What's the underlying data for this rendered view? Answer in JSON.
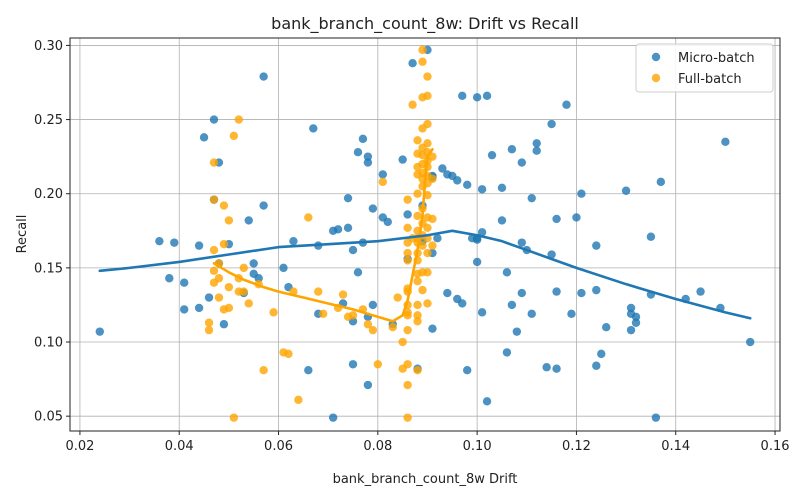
{
  "chart_data": {
    "type": "scatter",
    "title": "bank_branch_count_8w: Drift vs Recall",
    "xlabel": "bank_branch_count_8w Drift",
    "ylabel": "Recall",
    "xlim": [
      0.018,
      0.161
    ],
    "ylim": [
      0.04,
      0.305
    ],
    "xticks": [
      0.02,
      0.04,
      0.06,
      0.08,
      0.1,
      0.12,
      0.14,
      0.16
    ],
    "xtick_labels": [
      "0.02",
      "0.04",
      "0.06",
      "0.08",
      "0.10",
      "0.12",
      "0.14",
      "0.16"
    ],
    "yticks": [
      0.05,
      0.1,
      0.15,
      0.2,
      0.25,
      0.3
    ],
    "ytick_labels": [
      "0.05",
      "0.10",
      "0.15",
      "0.20",
      "0.25",
      "0.30"
    ],
    "grid": true,
    "legend_position": "top-right",
    "colors": {
      "micro": "#1f77b4",
      "full": "#ffa500"
    },
    "series": [
      {
        "name": "Micro-batch",
        "color": "#1f77b4",
        "points": [
          [
            0.024,
            0.107
          ],
          [
            0.036,
            0.168
          ],
          [
            0.038,
            0.143
          ],
          [
            0.039,
            0.167
          ],
          [
            0.041,
            0.14
          ],
          [
            0.041,
            0.122
          ],
          [
            0.044,
            0.123
          ],
          [
            0.044,
            0.165
          ],
          [
            0.045,
            0.238
          ],
          [
            0.046,
            0.13
          ],
          [
            0.047,
            0.25
          ],
          [
            0.047,
            0.196
          ],
          [
            0.048,
            0.221
          ],
          [
            0.048,
            0.153
          ],
          [
            0.049,
            0.112
          ],
          [
            0.05,
            0.166
          ],
          [
            0.053,
            0.133
          ],
          [
            0.054,
            0.182
          ],
          [
            0.055,
            0.153
          ],
          [
            0.055,
            0.146
          ],
          [
            0.056,
            0.143
          ],
          [
            0.057,
            0.279
          ],
          [
            0.057,
            0.192
          ],
          [
            0.061,
            0.15
          ],
          [
            0.062,
            0.137
          ],
          [
            0.063,
            0.168
          ],
          [
            0.066,
            0.081
          ],
          [
            0.067,
            0.244
          ],
          [
            0.068,
            0.165
          ],
          [
            0.068,
            0.119
          ],
          [
            0.071,
            0.049
          ],
          [
            0.071,
            0.175
          ],
          [
            0.072,
            0.176
          ],
          [
            0.073,
            0.126
          ],
          [
            0.074,
            0.177
          ],
          [
            0.074,
            0.197
          ],
          [
            0.075,
            0.085
          ],
          [
            0.075,
            0.114
          ],
          [
            0.075,
            0.162
          ],
          [
            0.076,
            0.228
          ],
          [
            0.076,
            0.147
          ],
          [
            0.077,
            0.237
          ],
          [
            0.077,
            0.167
          ],
          [
            0.078,
            0.071
          ],
          [
            0.078,
            0.117
          ],
          [
            0.078,
            0.225
          ],
          [
            0.078,
            0.221
          ],
          [
            0.079,
            0.19
          ],
          [
            0.079,
            0.125
          ],
          [
            0.081,
            0.213
          ],
          [
            0.081,
            0.184
          ],
          [
            0.082,
            0.181
          ],
          [
            0.083,
            0.112
          ],
          [
            0.085,
            0.223
          ],
          [
            0.086,
            0.186
          ],
          [
            0.086,
            0.156
          ],
          [
            0.087,
            0.288
          ],
          [
            0.088,
            0.082
          ],
          [
            0.089,
            0.192
          ],
          [
            0.089,
            0.168
          ],
          [
            0.09,
            0.297
          ],
          [
            0.091,
            0.212
          ],
          [
            0.091,
            0.211
          ],
          [
            0.091,
            0.16
          ],
          [
            0.091,
            0.109
          ],
          [
            0.092,
            0.17
          ],
          [
            0.093,
            0.217
          ],
          [
            0.094,
            0.133
          ],
          [
            0.094,
            0.213
          ],
          [
            0.095,
            0.212
          ],
          [
            0.096,
            0.129
          ],
          [
            0.096,
            0.209
          ],
          [
            0.097,
            0.126
          ],
          [
            0.097,
            0.266
          ],
          [
            0.098,
            0.206
          ],
          [
            0.098,
            0.081
          ],
          [
            0.099,
            0.17
          ],
          [
            0.1,
            0.154
          ],
          [
            0.1,
            0.265
          ],
          [
            0.1,
            0.17
          ],
          [
            0.1,
            0.169
          ],
          [
            0.101,
            0.203
          ],
          [
            0.101,
            0.174
          ],
          [
            0.101,
            0.12
          ],
          [
            0.102,
            0.266
          ],
          [
            0.102,
            0.06
          ],
          [
            0.103,
            0.226
          ],
          [
            0.105,
            0.182
          ],
          [
            0.105,
            0.204
          ],
          [
            0.106,
            0.093
          ],
          [
            0.106,
            0.147
          ],
          [
            0.107,
            0.23
          ],
          [
            0.107,
            0.125
          ],
          [
            0.108,
            0.107
          ],
          [
            0.109,
            0.221
          ],
          [
            0.109,
            0.167
          ],
          [
            0.109,
            0.133
          ],
          [
            0.11,
            0.162
          ],
          [
            0.111,
            0.197
          ],
          [
            0.111,
            0.119
          ],
          [
            0.112,
            0.234
          ],
          [
            0.112,
            0.229
          ],
          [
            0.114,
            0.083
          ],
          [
            0.115,
            0.247
          ],
          [
            0.115,
            0.159
          ],
          [
            0.116,
            0.082
          ],
          [
            0.116,
            0.134
          ],
          [
            0.116,
            0.183
          ],
          [
            0.118,
            0.26
          ],
          [
            0.119,
            0.119
          ],
          [
            0.12,
            0.184
          ],
          [
            0.121,
            0.133
          ],
          [
            0.121,
            0.2
          ],
          [
            0.124,
            0.135
          ],
          [
            0.124,
            0.084
          ],
          [
            0.124,
            0.165
          ],
          [
            0.125,
            0.092
          ],
          [
            0.126,
            0.11
          ],
          [
            0.13,
            0.202
          ],
          [
            0.131,
            0.123
          ],
          [
            0.131,
            0.119
          ],
          [
            0.131,
            0.108
          ],
          [
            0.132,
            0.113
          ],
          [
            0.132,
            0.117
          ],
          [
            0.135,
            0.132
          ],
          [
            0.135,
            0.171
          ],
          [
            0.136,
            0.049
          ],
          [
            0.137,
            0.208
          ],
          [
            0.142,
            0.129
          ],
          [
            0.145,
            0.134
          ],
          [
            0.149,
            0.123
          ],
          [
            0.15,
            0.235
          ],
          [
            0.155,
            0.1
          ]
        ]
      },
      {
        "name": "Full-batch",
        "color": "#ffa500",
        "points": [
          [
            0.046,
            0.113
          ],
          [
            0.046,
            0.108
          ],
          [
            0.047,
            0.221
          ],
          [
            0.047,
            0.196
          ],
          [
            0.047,
            0.162
          ],
          [
            0.047,
            0.148
          ],
          [
            0.047,
            0.14
          ],
          [
            0.048,
            0.153
          ],
          [
            0.048,
            0.143
          ],
          [
            0.048,
            0.13
          ],
          [
            0.049,
            0.166
          ],
          [
            0.049,
            0.122
          ],
          [
            0.049,
            0.192
          ],
          [
            0.05,
            0.123
          ],
          [
            0.05,
            0.137
          ],
          [
            0.05,
            0.182
          ],
          [
            0.051,
            0.239
          ],
          [
            0.051,
            0.049
          ],
          [
            0.052,
            0.25
          ],
          [
            0.052,
            0.134
          ],
          [
            0.052,
            0.143
          ],
          [
            0.053,
            0.134
          ],
          [
            0.053,
            0.15
          ],
          [
            0.054,
            0.126
          ],
          [
            0.056,
            0.139
          ],
          [
            0.057,
            0.081
          ],
          [
            0.059,
            0.12
          ],
          [
            0.061,
            0.093
          ],
          [
            0.062,
            0.092
          ],
          [
            0.063,
            0.134
          ],
          [
            0.064,
            0.061
          ],
          [
            0.066,
            0.184
          ],
          [
            0.068,
            0.134
          ],
          [
            0.069,
            0.119
          ],
          [
            0.072,
            0.123
          ],
          [
            0.073,
            0.132
          ],
          [
            0.074,
            0.117
          ],
          [
            0.075,
            0.118
          ],
          [
            0.077,
            0.122
          ],
          [
            0.078,
            0.112
          ],
          [
            0.079,
            0.108
          ],
          [
            0.08,
            0.085
          ],
          [
            0.081,
            0.208
          ],
          [
            0.083,
            0.11
          ],
          [
            0.084,
            0.13
          ],
          [
            0.085,
            0.1
          ],
          [
            0.085,
            0.082
          ],
          [
            0.086,
            0.085
          ],
          [
            0.086,
            0.049
          ],
          [
            0.086,
            0.071
          ],
          [
            0.086,
            0.108
          ],
          [
            0.086,
            0.118
          ],
          [
            0.086,
            0.12
          ],
          [
            0.086,
            0.125
          ],
          [
            0.086,
            0.134
          ],
          [
            0.086,
            0.136
          ],
          [
            0.086,
            0.155
          ],
          [
            0.086,
            0.16
          ],
          [
            0.086,
            0.167
          ],
          [
            0.086,
            0.177
          ],
          [
            0.086,
            0.196
          ],
          [
            0.087,
            0.17
          ],
          [
            0.087,
            0.26
          ],
          [
            0.088,
            0.118
          ],
          [
            0.088,
            0.114
          ],
          [
            0.088,
            0.125
          ],
          [
            0.088,
            0.141
          ],
          [
            0.088,
            0.146
          ],
          [
            0.088,
            0.155
          ],
          [
            0.088,
            0.16
          ],
          [
            0.088,
            0.167
          ],
          [
            0.088,
            0.17
          ],
          [
            0.088,
            0.175
          ],
          [
            0.088,
            0.185
          ],
          [
            0.088,
            0.2
          ],
          [
            0.088,
            0.213
          ],
          [
            0.088,
            0.218
          ],
          [
            0.088,
            0.227
          ],
          [
            0.088,
            0.236
          ],
          [
            0.088,
            0.081
          ],
          [
            0.089,
            0.265
          ],
          [
            0.089,
            0.244
          ],
          [
            0.089,
            0.289
          ],
          [
            0.089,
            0.297
          ],
          [
            0.089,
            0.135
          ],
          [
            0.089,
            0.147
          ],
          [
            0.089,
            0.165
          ],
          [
            0.089,
            0.172
          ],
          [
            0.089,
            0.18
          ],
          [
            0.089,
            0.19
          ],
          [
            0.089,
            0.205
          ],
          [
            0.089,
            0.21
          ],
          [
            0.089,
            0.214
          ],
          [
            0.089,
            0.22
          ],
          [
            0.089,
            0.226
          ],
          [
            0.089,
            0.231
          ],
          [
            0.09,
            0.247
          ],
          [
            0.09,
            0.266
          ],
          [
            0.09,
            0.279
          ],
          [
            0.09,
            0.126
          ],
          [
            0.09,
            0.147
          ],
          [
            0.09,
            0.16
          ],
          [
            0.09,
            0.17
          ],
          [
            0.09,
            0.177
          ],
          [
            0.09,
            0.184
          ],
          [
            0.09,
            0.199
          ],
          [
            0.09,
            0.207
          ],
          [
            0.09,
            0.212
          ],
          [
            0.09,
            0.218
          ],
          [
            0.09,
            0.222
          ],
          [
            0.09,
            0.228
          ],
          [
            0.09,
            0.234
          ],
          [
            0.091,
            0.165
          ],
          [
            0.091,
            0.183
          ],
          [
            0.091,
            0.21
          ],
          [
            0.091,
            0.225
          ]
        ]
      }
    ],
    "trend_line": {
      "color": "#1f77b4",
      "points": [
        [
          0.024,
          0.148
        ],
        [
          0.03,
          0.15
        ],
        [
          0.04,
          0.154
        ],
        [
          0.05,
          0.159
        ],
        [
          0.06,
          0.164
        ],
        [
          0.07,
          0.166
        ],
        [
          0.08,
          0.168
        ],
        [
          0.09,
          0.172
        ],
        [
          0.095,
          0.175
        ],
        [
          0.1,
          0.172
        ],
        [
          0.105,
          0.168
        ],
        [
          0.11,
          0.162
        ],
        [
          0.115,
          0.156
        ],
        [
          0.12,
          0.15
        ],
        [
          0.13,
          0.139
        ],
        [
          0.14,
          0.129
        ],
        [
          0.15,
          0.12
        ],
        [
          0.155,
          0.116
        ]
      ]
    },
    "full_trend_line": {
      "color": "#ffa500",
      "points": [
        [
          0.047,
          0.153
        ],
        [
          0.05,
          0.147
        ],
        [
          0.053,
          0.142
        ],
        [
          0.057,
          0.137
        ],
        [
          0.06,
          0.134
        ],
        [
          0.065,
          0.13
        ],
        [
          0.07,
          0.126
        ],
        [
          0.075,
          0.122
        ],
        [
          0.08,
          0.117
        ],
        [
          0.083,
          0.114
        ],
        [
          0.085,
          0.118
        ],
        [
          0.086,
          0.128
        ],
        [
          0.087,
          0.145
        ],
        [
          0.088,
          0.162
        ],
        [
          0.089,
          0.185
        ],
        [
          0.0895,
          0.208
        ],
        [
          0.09,
          0.225
        ],
        [
          0.091,
          0.23
        ]
      ]
    }
  }
}
